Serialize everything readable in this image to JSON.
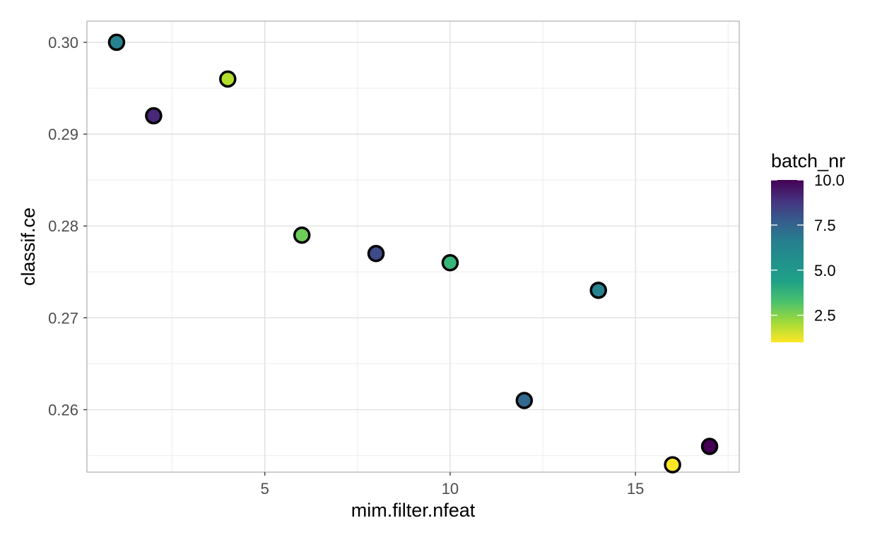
{
  "chart_data": {
    "type": "scatter",
    "xlabel": "mim.filter.nfeat",
    "ylabel": "classif.ce",
    "xlim": [
      0.2,
      17.8
    ],
    "ylim": [
      0.2532,
      0.3023
    ],
    "x_ticks": [
      5,
      10,
      15
    ],
    "x_tick_labels": [
      "5",
      "10",
      "15"
    ],
    "y_ticks": [
      0.26,
      0.27,
      0.28,
      0.29,
      0.3
    ],
    "y_tick_labels": [
      "0.26",
      "0.27",
      "0.28",
      "0.29",
      "0.30"
    ],
    "grid": true,
    "color_scale": {
      "name": "batch_nr",
      "palette": "viridis (reversed: high = dark purple, low = yellow)",
      "range": [
        1,
        10
      ],
      "ticks": [
        2.5,
        5.0,
        7.5,
        10.0
      ],
      "tick_labels": [
        "2.5",
        "5.0",
        "7.5",
        "10.0"
      ],
      "legend_position": "right"
    },
    "points": [
      {
        "x": 1,
        "y": 0.3,
        "batch_nr": 6
      },
      {
        "x": 2,
        "y": 0.292,
        "batch_nr": 9
      },
      {
        "x": 4,
        "y": 0.296,
        "batch_nr": 2
      },
      {
        "x": 6,
        "y": 0.279,
        "batch_nr": 3
      },
      {
        "x": 8,
        "y": 0.277,
        "batch_nr": 8
      },
      {
        "x": 10,
        "y": 0.276,
        "batch_nr": 4
      },
      {
        "x": 12,
        "y": 0.261,
        "batch_nr": 7
      },
      {
        "x": 14,
        "y": 0.273,
        "batch_nr": 6
      },
      {
        "x": 16,
        "y": 0.254,
        "batch_nr": 1
      },
      {
        "x": 17,
        "y": 0.256,
        "batch_nr": 10
      }
    ]
  }
}
